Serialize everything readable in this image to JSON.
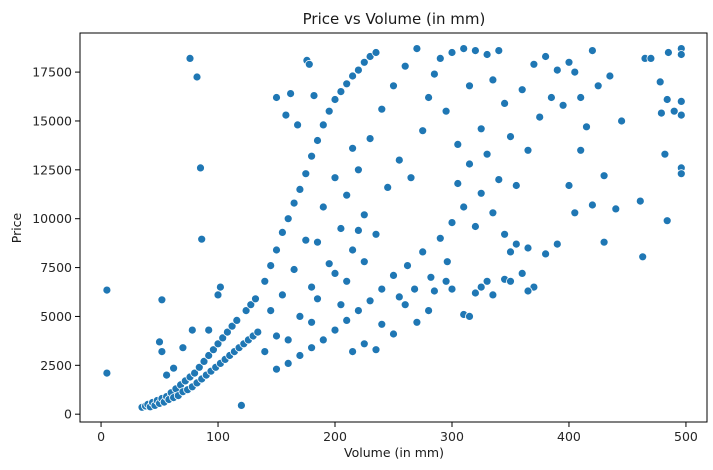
{
  "chart_data": {
    "type": "scatter",
    "title": "Price vs Volume (in mm)",
    "xlabel": "Volume (in mm)",
    "ylabel": "Price",
    "xlim": [
      -18,
      518
    ],
    "ylim": [
      -400,
      19500
    ],
    "xticks": [
      0,
      100,
      200,
      300,
      400,
      500
    ],
    "yticks": [
      0,
      2500,
      5000,
      7500,
      10000,
      12500,
      15000,
      17500
    ],
    "marker_color": "#1f77b4",
    "marker_edge_color": "#ffffff",
    "grid": false,
    "legend": "none",
    "points": [
      [
        5,
        6350
      ],
      [
        5,
        2100
      ],
      [
        50,
        3700
      ],
      [
        52,
        3200
      ],
      [
        52,
        5850
      ],
      [
        76,
        18200
      ],
      [
        82,
        17250
      ],
      [
        85,
        12600
      ],
      [
        86,
        8950
      ],
      [
        35,
        350
      ],
      [
        38,
        420
      ],
      [
        40,
        500
      ],
      [
        42,
        380
      ],
      [
        44,
        600
      ],
      [
        46,
        450
      ],
      [
        48,
        700
      ],
      [
        50,
        550
      ],
      [
        52,
        800
      ],
      [
        54,
        620
      ],
      [
        56,
        900
      ],
      [
        58,
        750
      ],
      [
        60,
        1100
      ],
      [
        62,
        850
      ],
      [
        64,
        1300
      ],
      [
        66,
        950
      ],
      [
        68,
        1500
      ],
      [
        70,
        1150
      ],
      [
        72,
        1700
      ],
      [
        74,
        1250
      ],
      [
        76,
        1900
      ],
      [
        78,
        1400
      ],
      [
        80,
        2100
      ],
      [
        82,
        1600
      ],
      [
        84,
        2400
      ],
      [
        86,
        1800
      ],
      [
        88,
        2700
      ],
      [
        90,
        2000
      ],
      [
        92,
        3000
      ],
      [
        94,
        2200
      ],
      [
        96,
        3300
      ],
      [
        98,
        2400
      ],
      [
        100,
        3600
      ],
      [
        102,
        2600
      ],
      [
        104,
        3900
      ],
      [
        106,
        2800
      ],
      [
        108,
        4200
      ],
      [
        110,
        3000
      ],
      [
        112,
        4500
      ],
      [
        114,
        3200
      ],
      [
        116,
        4800
      ],
      [
        118,
        3400
      ],
      [
        120,
        450
      ],
      [
        122,
        3600
      ],
      [
        124,
        5300
      ],
      [
        126,
        3800
      ],
      [
        128,
        5600
      ],
      [
        130,
        4000
      ],
      [
        132,
        5900
      ],
      [
        134,
        4200
      ],
      [
        100,
        6100
      ],
      [
        102,
        6500
      ],
      [
        92,
        4300
      ],
      [
        62,
        2350
      ],
      [
        56,
        2000
      ],
      [
        70,
        3400
      ],
      [
        78,
        4300
      ],
      [
        140,
        6800
      ],
      [
        145,
        7600
      ],
      [
        150,
        8400
      ],
      [
        155,
        9300
      ],
      [
        160,
        10000
      ],
      [
        165,
        10800
      ],
      [
        170,
        11500
      ],
      [
        175,
        12300
      ],
      [
        180,
        13200
      ],
      [
        185,
        14000
      ],
      [
        190,
        14800
      ],
      [
        195,
        15500
      ],
      [
        200,
        16100
      ],
      [
        205,
        16500
      ],
      [
        210,
        16900
      ],
      [
        215,
        17300
      ],
      [
        220,
        17600
      ],
      [
        225,
        18000
      ],
      [
        230,
        18300
      ],
      [
        235,
        18500
      ],
      [
        150,
        16200
      ],
      [
        158,
        15300
      ],
      [
        162,
        16400
      ],
      [
        168,
        14800
      ],
      [
        176,
        18100
      ],
      [
        178,
        17900
      ],
      [
        182,
        16300
      ],
      [
        150,
        2300
      ],
      [
        160,
        2600
      ],
      [
        170,
        3000
      ],
      [
        180,
        3400
      ],
      [
        190,
        3800
      ],
      [
        200,
        4300
      ],
      [
        210,
        4800
      ],
      [
        220,
        5300
      ],
      [
        230,
        5800
      ],
      [
        240,
        6400
      ],
      [
        250,
        7100
      ],
      [
        255,
        6000
      ],
      [
        262,
        7600
      ],
      [
        268,
        6400
      ],
      [
        275,
        8300
      ],
      [
        282,
        7000
      ],
      [
        290,
        9000
      ],
      [
        296,
        7800
      ],
      [
        200,
        7200
      ],
      [
        205,
        9500
      ],
      [
        210,
        11200
      ],
      [
        215,
        8400
      ],
      [
        220,
        12500
      ],
      [
        225,
        10200
      ],
      [
        230,
        14100
      ],
      [
        235,
        9200
      ],
      [
        240,
        15600
      ],
      [
        245,
        11600
      ],
      [
        250,
        16800
      ],
      [
        255,
        13000
      ],
      [
        260,
        17800
      ],
      [
        265,
        12100
      ],
      [
        270,
        18700
      ],
      [
        275,
        14500
      ],
      [
        280,
        16200
      ],
      [
        285,
        17400
      ],
      [
        290,
        18200
      ],
      [
        295,
        15500
      ],
      [
        300,
        18500
      ],
      [
        305,
        13800
      ],
      [
        310,
        18700
      ],
      [
        315,
        16800
      ],
      [
        320,
        18600
      ],
      [
        325,
        14600
      ],
      [
        330,
        18400
      ],
      [
        335,
        17100
      ],
      [
        340,
        18600
      ],
      [
        345,
        15900
      ],
      [
        300,
        9800
      ],
      [
        305,
        11800
      ],
      [
        310,
        10600
      ],
      [
        315,
        12800
      ],
      [
        320,
        9600
      ],
      [
        325,
        11300
      ],
      [
        330,
        13300
      ],
      [
        335,
        10300
      ],
      [
        340,
        12000
      ],
      [
        345,
        9200
      ],
      [
        350,
        14200
      ],
      [
        355,
        11700
      ],
      [
        360,
        16600
      ],
      [
        365,
        13500
      ],
      [
        370,
        17900
      ],
      [
        375,
        15200
      ],
      [
        380,
        18300
      ],
      [
        385,
        16200
      ],
      [
        390,
        17600
      ],
      [
        395,
        15800
      ],
      [
        350,
        8300
      ],
      [
        355,
        8700
      ],
      [
        360,
        7200
      ],
      [
        365,
        8500
      ],
      [
        370,
        6500
      ],
      [
        380,
        8200
      ],
      [
        390,
        8700
      ],
      [
        400,
        18000
      ],
      [
        405,
        17500
      ],
      [
        410,
        16200
      ],
      [
        300,
        6400
      ],
      [
        310,
        5100
      ],
      [
        315,
        5000
      ],
      [
        320,
        6200
      ],
      [
        325,
        6500
      ],
      [
        330,
        6800
      ],
      [
        335,
        6100
      ],
      [
        345,
        6900
      ],
      [
        350,
        6800
      ],
      [
        365,
        6300
      ],
      [
        400,
        11700
      ],
      [
        405,
        10300
      ],
      [
        410,
        13500
      ],
      [
        415,
        14700
      ],
      [
        420,
        18600
      ],
      [
        425,
        16800
      ],
      [
        430,
        12200
      ],
      [
        435,
        17300
      ],
      [
        440,
        10500
      ],
      [
        445,
        15000
      ],
      [
        420,
        10700
      ],
      [
        430,
        8800
      ],
      [
        461,
        10900
      ],
      [
        463,
        8050
      ],
      [
        465,
        18200
      ],
      [
        470,
        18200
      ],
      [
        478,
        17000
      ],
      [
        479,
        15400
      ],
      [
        482,
        13300
      ],
      [
        484,
        9900
      ],
      [
        484,
        16100
      ],
      [
        485,
        18500
      ],
      [
        490,
        15500
      ],
      [
        496,
        18700
      ],
      [
        496,
        18400
      ],
      [
        496,
        16000
      ],
      [
        496,
        15300
      ],
      [
        496,
        12600
      ],
      [
        496,
        12300
      ],
      [
        240,
        4600
      ],
      [
        260,
        5600
      ],
      [
        270,
        4700
      ],
      [
        280,
        5300
      ],
      [
        285,
        6300
      ],
      [
        295,
        6800
      ],
      [
        250,
        4100
      ],
      [
        235,
        3300
      ],
      [
        225,
        3600
      ],
      [
        215,
        3200
      ],
      [
        180,
        6500
      ],
      [
        185,
        8800
      ],
      [
        190,
        10600
      ],
      [
        195,
        7700
      ],
      [
        200,
        12100
      ],
      [
        205,
        5600
      ],
      [
        210,
        6800
      ],
      [
        215,
        13600
      ],
      [
        220,
        9400
      ],
      [
        225,
        7800
      ],
      [
        140,
        3200
      ],
      [
        145,
        5300
      ],
      [
        150,
        4000
      ],
      [
        155,
        6100
      ],
      [
        160,
        3800
      ],
      [
        165,
        7400
      ],
      [
        170,
        5000
      ],
      [
        175,
        8900
      ],
      [
        180,
        4700
      ],
      [
        185,
        5900
      ]
    ]
  }
}
